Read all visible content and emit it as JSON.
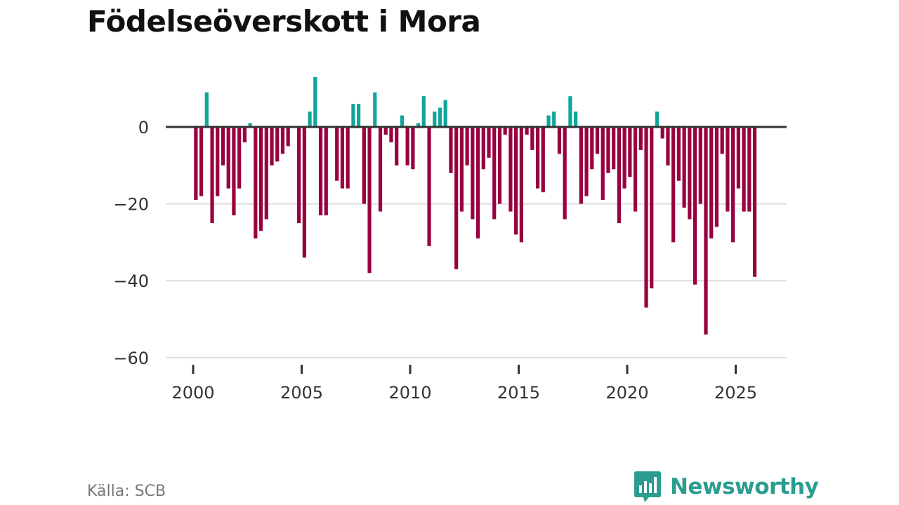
{
  "colors": {
    "positive": "#10a59b",
    "negative": "#98003f",
    "brand": "#2a9d8f"
  },
  "source": "Källa: SCB",
  "brand_name": "Newsworthy",
  "chart_data": {
    "type": "bar",
    "title": "Födelseöverskott i Mora",
    "xlabel": "",
    "ylabel": "",
    "ylim": [
      -60,
      13
    ],
    "yticks": [
      0,
      -20,
      -40,
      -60
    ],
    "ytick_labels": [
      "0",
      "−20",
      "−40",
      "−60"
    ],
    "xticks": [
      2000,
      2005,
      2010,
      2015,
      2020,
      2025
    ],
    "xtick_labels": [
      "2000",
      "2005",
      "2010",
      "2015",
      "2020",
      "2025"
    ],
    "start_year": 2000,
    "period": "quarter",
    "values": [
      -19,
      -18,
      9,
      -25,
      -18,
      -10,
      -16,
      -23,
      -16,
      -4,
      1,
      -29,
      -27,
      -24,
      -10,
      -9,
      -7,
      -5,
      0,
      -25,
      -34,
      4,
      13,
      -23,
      -23,
      0,
      -14,
      -16,
      -16,
      6,
      6,
      -20,
      -38,
      9,
      -22,
      -2,
      -4,
      -10,
      3,
      -10,
      -11,
      1,
      8,
      -31,
      4,
      5,
      7,
      -12,
      -37,
      -22,
      -10,
      -24,
      -29,
      -11,
      -8,
      -24,
      -20,
      -2,
      -22,
      -28,
      -30,
      -2,
      -6,
      -16,
      -17,
      3,
      4,
      -7,
      -24,
      8,
      4,
      -20,
      -18,
      -11,
      -7,
      -19,
      -12,
      -11,
      -25,
      -16,
      -13,
      -22,
      -6,
      -47,
      -42,
      4,
      -3,
      -10,
      -30,
      -14,
      -21,
      -24,
      -41,
      -20,
      -54,
      -29,
      -26,
      -7,
      -22,
      -30,
      -16,
      -22,
      -22,
      -39
    ]
  }
}
